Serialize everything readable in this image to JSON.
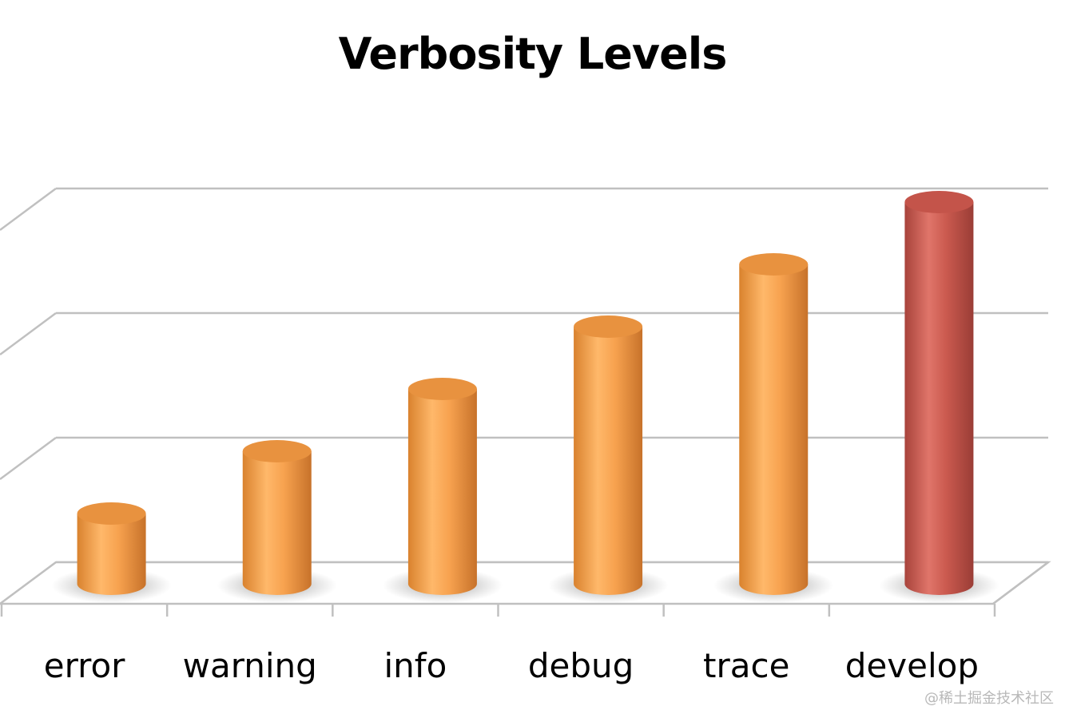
{
  "chart_data": {
    "type": "bar",
    "style": "3d-cylinder",
    "title": "Verbosity Levels",
    "xlabel": "",
    "ylabel": "",
    "categories": [
      "error",
      "warning",
      "info",
      "debug",
      "trace",
      "develop"
    ],
    "values": [
      1,
      2,
      3,
      4,
      5,
      6
    ],
    "ylim": [
      0,
      6.5
    ],
    "grid": true,
    "legend": "none",
    "colors": {
      "bar": "#f7a24f",
      "highlight_bar": "#cb5a4f",
      "grid": "#c0c0c0"
    },
    "highlight_category": "develop"
  },
  "watermark": "@稀土掘金技术社区"
}
